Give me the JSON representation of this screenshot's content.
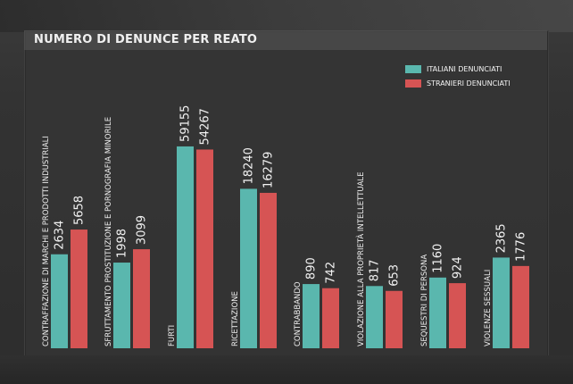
{
  "colors": {
    "italiani": "#5ab7ae",
    "stranieri": "#d65454"
  },
  "chart_data": {
    "type": "bar",
    "title": "NUMERO DI DENUNCE PER REATO",
    "categories": [
      "CONTRAFFAZIONE DI MARCHI E PRODOTTI INDUSTRIALI",
      "SFRUTTAMENTO PROSTITUZIONE E PORNOGRAFIA MINORILE",
      "FURTI",
      "RICETTAZIONE",
      "CONTRABBANDO",
      "VIOLAZIONE ALLA PROPRIETÀ INTELLETTUALE",
      "SEQUESTRI DI PERSONA",
      "VIOLENZE SESSUALI"
    ],
    "series": [
      {
        "name": "ITALIANI DENUNCIATI",
        "values": [
          2634,
          1998,
          59155,
          18240,
          890,
          817,
          1160,
          2365
        ]
      },
      {
        "name": "STRANIERI DENUNCIATI",
        "values": [
          5658,
          3099,
          54267,
          16279,
          742,
          653,
          924,
          1776
        ]
      }
    ],
    "legend_position": "top-right",
    "grid": false,
    "scale": "non-linear"
  }
}
